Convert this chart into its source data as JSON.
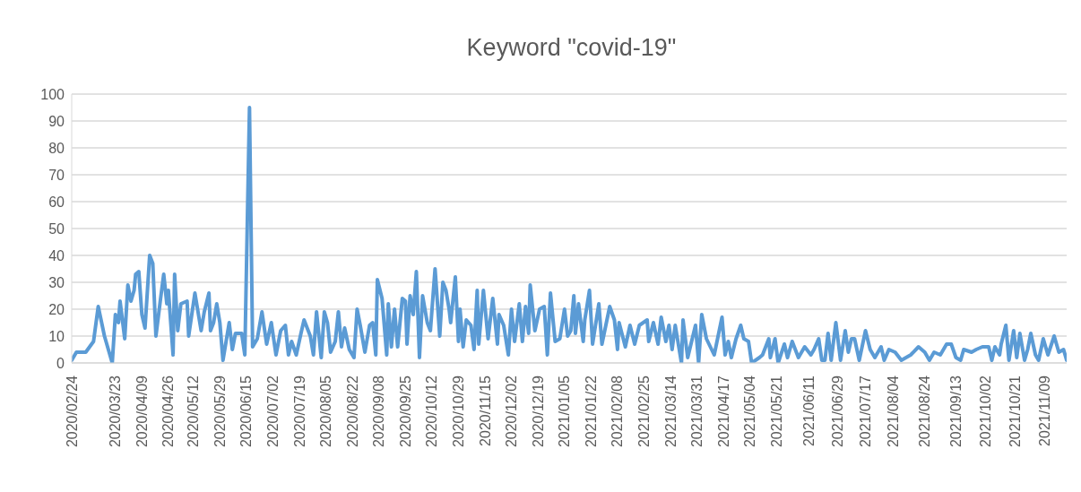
{
  "chart_data": {
    "type": "line",
    "title": "Keyword \"covid-19\"",
    "x": [
      "2020-02-24",
      "2020-02-27",
      "2020-03-04",
      "2020-03-09",
      "2020-03-12",
      "2020-03-16",
      "2020-03-21",
      "2020-03-23",
      "2020-03-25",
      "2020-03-26",
      "2020-03-29",
      "2020-03-31",
      "2020-04-02",
      "2020-04-04",
      "2020-04-05",
      "2020-04-07",
      "2020-04-09",
      "2020-04-11",
      "2020-04-14",
      "2020-04-16",
      "2020-04-18",
      "2020-04-21",
      "2020-04-23",
      "2020-04-25",
      "2020-04-26",
      "2020-04-29",
      "2020-04-30",
      "2020-05-02",
      "2020-05-04",
      "2020-05-08",
      "2020-05-09",
      "2020-05-13",
      "2020-05-17",
      "2020-05-19",
      "2020-05-22",
      "2020-05-23",
      "2020-05-25",
      "2020-05-27",
      "2020-05-29",
      "2020-05-31",
      "2020-06-04",
      "2020-06-06",
      "2020-06-08",
      "2020-06-12",
      "2020-06-14",
      "2020-06-17",
      "2020-06-19",
      "2020-06-22",
      "2020-06-25",
      "2020-06-28",
      "2020-07-01",
      "2020-07-04",
      "2020-07-07",
      "2020-07-10",
      "2020-07-12",
      "2020-07-14",
      "2020-07-17",
      "2020-07-20",
      "2020-07-22",
      "2020-07-26",
      "2020-07-28",
      "2020-07-30",
      "2020-08-02",
      "2020-08-04",
      "2020-08-06",
      "2020-08-08",
      "2020-08-11",
      "2020-08-13",
      "2020-08-15",
      "2020-08-17",
      "2020-08-20",
      "2020-08-23",
      "2020-08-25",
      "2020-08-27",
      "2020-08-30",
      "2020-09-02",
      "2020-09-04",
      "2020-09-06",
      "2020-09-07",
      "2020-09-10",
      "2020-09-13",
      "2020-09-14",
      "2020-09-16",
      "2020-09-18",
      "2020-09-20",
      "2020-09-23",
      "2020-09-25",
      "2020-09-26",
      "2020-09-28",
      "2020-09-30",
      "2020-10-02",
      "2020-10-04",
      "2020-10-06",
      "2020-10-09",
      "2020-10-11",
      "2020-10-14",
      "2020-10-17",
      "2020-10-19",
      "2020-10-21",
      "2020-10-23",
      "2020-10-24",
      "2020-10-27",
      "2020-10-29",
      "2020-10-30",
      "2020-11-01",
      "2020-11-03",
      "2020-11-06",
      "2020-11-08",
      "2020-11-10",
      "2020-11-11",
      "2020-11-14",
      "2020-11-17",
      "2020-11-20",
      "2020-11-23",
      "2020-11-24",
      "2020-11-27",
      "2020-11-30",
      "2020-12-02",
      "2020-12-04",
      "2020-12-07",
      "2020-12-09",
      "2020-12-11",
      "2020-12-13",
      "2020-12-14",
      "2020-12-17",
      "2020-12-20",
      "2020-12-23",
      "2020-12-25",
      "2020-12-27",
      "2020-12-30",
      "2021-01-02",
      "2021-01-05",
      "2021-01-07",
      "2021-01-09",
      "2021-01-11",
      "2021-01-12",
      "2021-01-14",
      "2021-01-17",
      "2021-01-18",
      "2021-01-21",
      "2021-01-23",
      "2021-01-27",
      "2021-01-29",
      "2021-02-03",
      "2021-02-06",
      "2021-02-08",
      "2021-02-09",
      "2021-02-13",
      "2021-02-16",
      "2021-02-19",
      "2021-02-22",
      "2021-02-27",
      "2021-02-28",
      "2021-03-03",
      "2021-03-06",
      "2021-03-08",
      "2021-03-11",
      "2021-03-13",
      "2021-03-15",
      "2021-03-17",
      "2021-03-21",
      "2021-03-22",
      "2021-03-25",
      "2021-03-30",
      "2021-04-01",
      "2021-04-03",
      "2021-04-06",
      "2021-04-11",
      "2021-04-16",
      "2021-04-18",
      "2021-04-20",
      "2021-04-22",
      "2021-04-25",
      "2021-04-28",
      "2021-04-30",
      "2021-05-03",
      "2021-05-05",
      "2021-05-10",
      "2021-05-12",
      "2021-05-16",
      "2021-05-17",
      "2021-05-20",
      "2021-05-22",
      "2021-05-26",
      "2021-05-28",
      "2021-05-31",
      "2021-06-04",
      "2021-06-08",
      "2021-06-12",
      "2021-06-14",
      "2021-06-17",
      "2021-06-19",
      "2021-06-21",
      "2021-06-23",
      "2021-06-25",
      "2021-06-28",
      "2021-07-01",
      "2021-07-04",
      "2021-07-06",
      "2021-07-08",
      "2021-07-10",
      "2021-07-13",
      "2021-07-17",
      "2021-07-20",
      "2021-07-23",
      "2021-07-27",
      "2021-07-29",
      "2021-08-01",
      "2021-08-05",
      "2021-08-09",
      "2021-08-12",
      "2021-08-15",
      "2021-08-20",
      "2021-08-24",
      "2021-08-27",
      "2021-08-30",
      "2021-09-03",
      "2021-09-07",
      "2021-09-10",
      "2021-09-13",
      "2021-09-16",
      "2021-09-18",
      "2021-09-23",
      "2021-09-26",
      "2021-09-30",
      "2021-10-04",
      "2021-10-06",
      "2021-10-08",
      "2021-10-11",
      "2021-10-12",
      "2021-10-15",
      "2021-10-17",
      "2021-10-20",
      "2021-10-22",
      "2021-10-24",
      "2021-10-27",
      "2021-10-29",
      "2021-10-31",
      "2021-11-03",
      "2021-11-05",
      "2021-11-08",
      "2021-11-11",
      "2021-11-15",
      "2021-11-18",
      "2021-11-21",
      "2021-11-23"
    ],
    "series": [
      {
        "color": "#5b9bd5",
        "values": [
          1,
          4,
          4,
          8,
          21,
          10,
          0,
          18,
          15,
          23,
          9,
          29,
          23,
          27,
          33,
          34,
          18,
          13,
          40,
          37,
          10,
          24,
          33,
          22,
          27,
          3,
          33,
          12,
          22,
          23,
          10,
          26,
          12,
          19,
          26,
          12,
          15,
          22,
          15,
          1,
          15,
          5,
          11,
          11,
          3,
          95,
          6,
          9,
          19,
          7,
          15,
          3,
          12,
          14,
          3,
          8,
          3,
          11,
          16,
          10,
          3,
          19,
          2,
          19,
          15,
          4,
          8,
          19,
          6,
          13,
          5,
          2,
          20,
          14,
          4,
          14,
          15,
          3,
          31,
          24,
          3,
          22,
          6,
          20,
          6,
          24,
          23,
          7,
          25,
          18,
          34,
          2,
          25,
          15,
          12,
          35,
          10,
          30,
          27,
          20,
          15,
          32,
          8,
          20,
          6,
          16,
          14,
          5,
          27,
          7,
          27,
          9,
          24,
          7,
          18,
          14,
          3,
          20,
          8,
          22,
          8,
          21,
          11,
          29,
          12,
          20,
          21,
          3,
          26,
          8,
          9,
          20,
          10,
          12,
          25,
          11,
          22,
          8,
          16,
          27,
          7,
          22,
          7,
          21,
          16,
          5,
          15,
          6,
          14,
          7,
          14,
          16,
          8,
          15,
          7,
          17,
          8,
          14,
          5,
          14,
          0,
          16,
          2,
          14,
          0,
          18,
          9,
          3,
          17,
          3,
          8,
          2,
          9,
          14,
          9,
          8,
          0,
          2,
          3,
          9,
          2,
          9,
          0,
          7,
          2,
          8,
          2,
          6,
          3,
          5,
          9,
          1,
          1,
          11,
          1,
          15,
          1,
          12,
          4,
          9,
          9,
          1,
          12,
          5,
          2,
          6,
          1,
          5,
          4,
          1,
          2,
          3,
          6,
          4,
          1,
          4,
          3,
          7,
          7,
          2,
          1,
          5,
          4,
          5,
          6,
          6,
          1,
          6,
          3,
          7,
          14,
          1,
          12,
          2,
          11,
          1,
          5,
          11,
          3,
          1,
          9,
          3,
          10,
          4,
          5,
          1
        ]
      }
    ],
    "xlim": [
      "2020-02-24",
      "2021-11-23"
    ],
    "xticks": [
      {
        "value": "2020-02-24",
        "label": "2020/02/24"
      },
      {
        "value": "2020-03-23",
        "label": "2020/03/23"
      },
      {
        "value": "2020-04-09",
        "label": "2020/04/09"
      },
      {
        "value": "2020-04-26",
        "label": "2020/04/26"
      },
      {
        "value": "2020-05-12",
        "label": "2020/05/12"
      },
      {
        "value": "2020-05-29",
        "label": "2020/05/29"
      },
      {
        "value": "2020-06-15",
        "label": "2020/06/15"
      },
      {
        "value": "2020-07-02",
        "label": "2020/07/02"
      },
      {
        "value": "2020-07-19",
        "label": "2020/07/19"
      },
      {
        "value": "2020-08-05",
        "label": "2020/08/05"
      },
      {
        "value": "2020-08-22",
        "label": "2020/08/22"
      },
      {
        "value": "2020-09-08",
        "label": "2020/09/08"
      },
      {
        "value": "2020-09-25",
        "label": "2020/09/25"
      },
      {
        "value": "2020-10-12",
        "label": "2020/10/12"
      },
      {
        "value": "2020-10-29",
        "label": "2020/10/29"
      },
      {
        "value": "2020-11-15",
        "label": "2020/11/15"
      },
      {
        "value": "2020-12-02",
        "label": "2020/12/02"
      },
      {
        "value": "2020-12-19",
        "label": "2020/12/19"
      },
      {
        "value": "2021-01-05",
        "label": "2021/01/05"
      },
      {
        "value": "2021-01-22",
        "label": "2021/01/22"
      },
      {
        "value": "2021-02-08",
        "label": "2021/02/08"
      },
      {
        "value": "2021-02-25",
        "label": "2021/02/25"
      },
      {
        "value": "2021-03-14",
        "label": "2021/03/14"
      },
      {
        "value": "2021-03-31",
        "label": "2021/03/31"
      },
      {
        "value": "2021-04-17",
        "label": "2021/04/17"
      },
      {
        "value": "2021-05-04",
        "label": "2021/05/04"
      },
      {
        "value": "2021-05-21",
        "label": "2021/05/21"
      },
      {
        "value": "2021-06-11",
        "label": "2021/06/11"
      },
      {
        "value": "2021-06-29",
        "label": "2021/06/29"
      },
      {
        "value": "2021-07-17",
        "label": "2021/07/17"
      },
      {
        "value": "2021-08-04",
        "label": "2021/08/04"
      },
      {
        "value": "2021-08-24",
        "label": "2021/08/24"
      },
      {
        "value": "2021-09-13",
        "label": "2021/09/13"
      },
      {
        "value": "2021-10-02",
        "label": "2021/10/02"
      },
      {
        "value": "2021-10-21",
        "label": "2021/10/21"
      },
      {
        "value": "2021-11-09",
        "label": "2021/11/09"
      }
    ],
    "ylim": [
      0,
      100
    ],
    "yticks": [
      0,
      10,
      20,
      30,
      40,
      50,
      60,
      70,
      80,
      90,
      100
    ],
    "grid": "y",
    "legend": false,
    "marker": "none",
    "line_style": "solid"
  }
}
